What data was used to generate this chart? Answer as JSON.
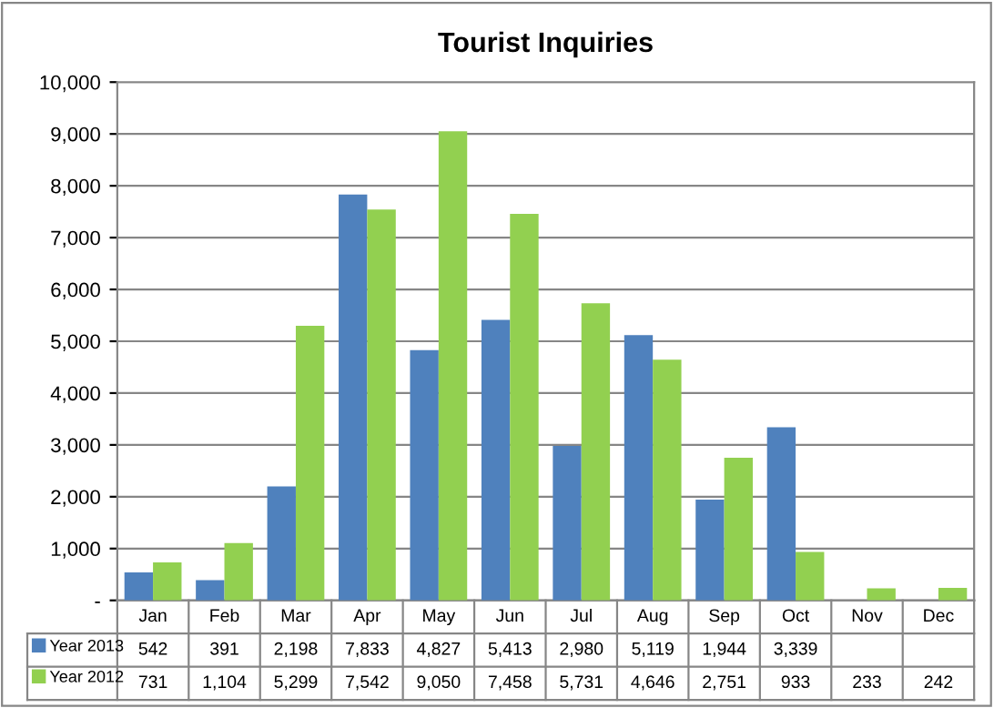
{
  "chart_data": {
    "type": "bar",
    "title": "Tourist Inquiries",
    "categories": [
      "Jan",
      "Feb",
      "Mar",
      "Apr",
      "May",
      "Jun",
      "Jul",
      "Aug",
      "Sep",
      "Oct",
      "Nov",
      "Dec"
    ],
    "series": [
      {
        "name": "Year 2013",
        "color": "#4f81bd",
        "values": [
          542,
          391,
          2198,
          7833,
          4827,
          5413,
          2980,
          5119,
          1944,
          3339,
          null,
          null
        ],
        "value_labels": [
          "542",
          "391",
          "2,198",
          "7,833",
          "4,827",
          "5,413",
          "2,980",
          "5,119",
          "1,944",
          "3,339",
          null,
          null
        ]
      },
      {
        "name": "Year 2012",
        "color": "#92d050",
        "values": [
          731,
          1104,
          5299,
          7542,
          9050,
          7458,
          5731,
          4646,
          2751,
          933,
          233,
          242
        ],
        "value_labels": [
          "731",
          "1,104",
          "5,299",
          "7,542",
          "9,050",
          "7,458",
          "5,731",
          "4,646",
          "2,751",
          "933",
          "233",
          "242"
        ]
      }
    ],
    "ylim": [
      0,
      10000
    ],
    "yticks": [
      {
        "value": 0,
        "label": "-"
      },
      {
        "value": 1000,
        "label": "1,000"
      },
      {
        "value": 2000,
        "label": "2,000"
      },
      {
        "value": 3000,
        "label": "3,000"
      },
      {
        "value": 4000,
        "label": "4,000"
      },
      {
        "value": 5000,
        "label": "5,000"
      },
      {
        "value": 6000,
        "label": "6,000"
      },
      {
        "value": 7000,
        "label": "7,000"
      },
      {
        "value": 8000,
        "label": "8,000"
      },
      {
        "value": 9000,
        "label": "9,000"
      },
      {
        "value": 10000,
        "label": "10,000"
      }
    ],
    "grid": "y",
    "legend": "bottom"
  }
}
